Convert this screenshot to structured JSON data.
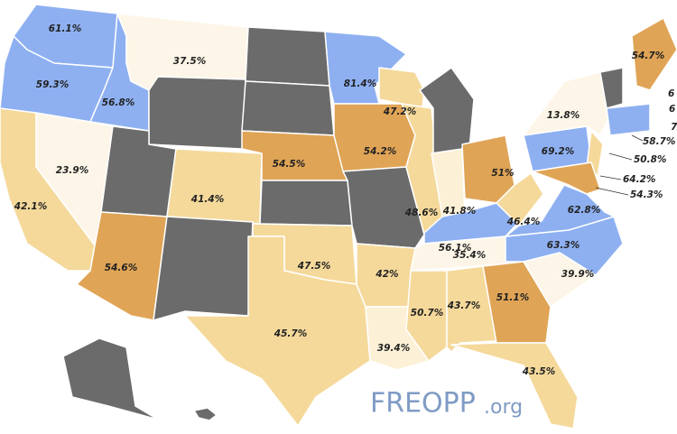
{
  "labels": [
    "61.1%",
    "59.3%",
    "56.8%",
    "37.5%",
    "23.9%",
    "42.1%",
    "41.4%",
    "54.6%",
    "54.5%",
    "81.4%",
    "54.2%",
    "47.2%",
    "47.5%",
    "45.7%",
    "42%",
    "39.4%",
    "48.6%",
    "41.8%",
    "51%",
    "56.1%",
    "35.4%",
    "50.7%",
    "43.7%",
    "51.1%",
    "43.5%",
    "39.9%",
    "63.3%",
    "62.8%",
    "46.4%",
    "69.2%",
    "13.8%",
    "54.7%",
    "58.7%",
    "50.8%",
    "64.2%",
    "54.3%",
    "6",
    "6",
    "7"
  ],
  "logo": {
    "name": "FREOPP",
    "domain": ".org"
  }
}
